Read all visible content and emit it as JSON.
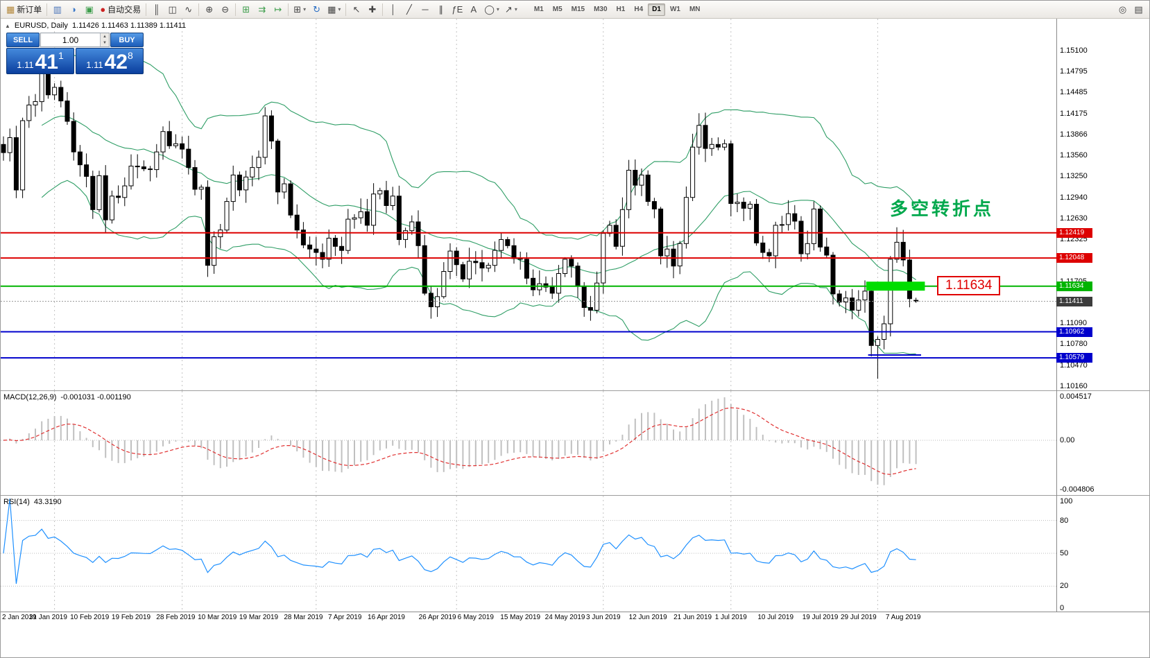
{
  "toolbar": {
    "left_items": [
      {
        "name": "new-order-button",
        "glyph": "▦",
        "color": "#b3873a",
        "label": "新订单"
      },
      {
        "sep": true
      },
      {
        "name": "market-watch-icon-button",
        "glyph": "▥",
        "color": "#4a74b8"
      },
      {
        "name": "navigator-icon-button",
        "glyph": "◑",
        "color": "#3a78c8"
      },
      {
        "name": "terminal-icon-button",
        "glyph": "▣",
        "color": "#3f9e4d"
      },
      {
        "name": "autotrading-button",
        "glyph": "●",
        "color": "#cc2222",
        "label": "自动交易"
      },
      {
        "sep": true
      },
      {
        "name": "bar-chart-icon-button",
        "glyph": "║"
      },
      {
        "name": "candlestick-chart-icon-button",
        "glyph": "◫"
      },
      {
        "name": "line-chart-icon-button",
        "glyph": "∿"
      },
      {
        "sep": true
      },
      {
        "name": "zoom-in-icon-button",
        "glyph": "⊕"
      },
      {
        "name": "zoom-out-icon-button",
        "glyph": "⊖"
      },
      {
        "sep": true
      },
      {
        "name": "tile-windows-icon-button",
        "glyph": "⊞",
        "color": "#3f9e4d"
      },
      {
        "name": "auto-scroll-icon-button",
        "glyph": "⇉",
        "color": "#3f9e4d"
      },
      {
        "name": "chart-shift-icon-button",
        "glyph": "↦",
        "color": "#3f9e4d"
      },
      {
        "sep": true
      },
      {
        "name": "new-chart-button",
        "glyph": "⊞",
        "caret": true
      },
      {
        "name": "refresh-icon-button",
        "glyph": "↻",
        "color": "#2b6fc4"
      },
      {
        "name": "templates-icon-button",
        "glyph": "▦",
        "caret": true
      },
      {
        "sep": true
      },
      {
        "name": "cursor-icon-button",
        "glyph": "↖"
      },
      {
        "name": "crosshair-icon-button",
        "glyph": "✚"
      },
      {
        "sep": true
      },
      {
        "name": "vertical-line-icon-button",
        "glyph": "│"
      },
      {
        "name": "trendline-icon-button",
        "glyph": "╱"
      },
      {
        "name": "horizontal-line-icon-button",
        "glyph": "─"
      },
      {
        "name": "channel-icon-button",
        "glyph": "∥"
      },
      {
        "name": "fibonacci-icon-button",
        "glyph": "ƒE"
      },
      {
        "name": "text-icon-button",
        "glyph": "A"
      },
      {
        "name": "shapes-icon-button",
        "glyph": "◯",
        "caret": true
      },
      {
        "name": "arrow-tool-icon-button",
        "glyph": "↗",
        "caret": true
      }
    ],
    "timeframes": [
      "M1",
      "M5",
      "M15",
      "M30",
      "H1",
      "H4",
      "D1",
      "W1",
      "MN"
    ],
    "active_timeframe": "D1",
    "right_items": [
      {
        "name": "search-icon-button",
        "glyph": "◎"
      },
      {
        "name": "window-list-icon-button",
        "glyph": "▤"
      }
    ]
  },
  "chart": {
    "symbol_icon": "▲",
    "symbol_label": "EURUSD, Daily",
    "ohlc_label": "1.11426 1.11463 1.11389 1.11411",
    "trade_panel": {
      "sell_label": "SELL",
      "buy_label": "BUY",
      "volume": "1.00",
      "vol_up_icon": "▲",
      "vol_down_icon": "▼",
      "bid_small": "1.11",
      "bid_big": "41",
      "bid_sup": "1",
      "ask_small": "1.11",
      "ask_big": "42",
      "ask_sup": "8"
    },
    "annotation": "多空转折点",
    "level_label": "1.11634",
    "y_axis_labels": [
      "1.15100",
      "1.14795",
      "1.14485",
      "1.14175",
      "1.13866",
      "1.13560",
      "1.13250",
      "1.12940",
      "1.12630",
      "1.12325",
      "1.12015",
      "1.11705",
      "1.11395",
      "1.11090",
      "1.10780",
      "1.10470",
      "1.10160"
    ],
    "price_tags": [
      {
        "text": "1.12419",
        "price": 1.12419,
        "color": "#dd0000",
        "line": "solid"
      },
      {
        "text": "1.12048",
        "price": 1.12048,
        "color": "#dd0000",
        "line": "solid"
      },
      {
        "text": "1.11634",
        "price": 1.11634,
        "color": "#00b400",
        "line": "solid"
      },
      {
        "text": "1.11411",
        "price": 1.11411,
        "color": "#3c3c3c",
        "line": "dotted"
      },
      {
        "text": "1.10962",
        "price": 1.10962,
        "color": "#0000cc",
        "line": "solid"
      },
      {
        "text": "1.10579",
        "price": 1.10579,
        "color": "#0000cc",
        "line": "solid"
      }
    ],
    "highlight": {
      "price": 1.11634,
      "i1": 135.2,
      "i2": 144.4,
      "height": 13
    },
    "segments": [
      {
        "price": 1.1062,
        "i1": 135.5,
        "i2": 143.8,
        "color": "#0000cc"
      }
    ],
    "x_axis_labels": [
      {
        "t": "2 Jan 2019",
        "i": 0,
        "left": true
      },
      {
        "t": "31 Jan 2019",
        "i": 7
      },
      {
        "t": "10 Feb 2019",
        "i": 13.5
      },
      {
        "t": "19 Feb 2019",
        "i": 20
      },
      {
        "t": "28 Feb 2019",
        "i": 27
      },
      {
        "t": "10 Mar 2019",
        "i": 33.5
      },
      {
        "t": "19 Mar 2019",
        "i": 40
      },
      {
        "t": "28 Mar 2019",
        "i": 47
      },
      {
        "t": "7 Apr 2019",
        "i": 53.5
      },
      {
        "t": "16 Apr 2019",
        "i": 60
      },
      {
        "t": "26 Apr 2019",
        "i": 68
      },
      {
        "t": "6 May 2019",
        "i": 74
      },
      {
        "t": "15 May 2019",
        "i": 81
      },
      {
        "t": "24 May 2019",
        "i": 88
      },
      {
        "t": "3 Jun 2019",
        "i": 94
      },
      {
        "t": "12 Jun 2019",
        "i": 101
      },
      {
        "t": "21 Jun 2019",
        "i": 108
      },
      {
        "t": "1 Jul 2019",
        "i": 114
      },
      {
        "t": "10 Jul 2019",
        "i": 121
      },
      {
        "t": "19 Jul 2019",
        "i": 128
      },
      {
        "t": "29 Jul 2019",
        "i": 134
      },
      {
        "t": "7 Aug 2019",
        "i": 141
      }
    ]
  },
  "macd_panel": {
    "label": "MACD(12,26,9)",
    "values": "-0.001031 -0.001190",
    "axis_labels": [
      "0.004517",
      "0.00",
      "-0.004806"
    ]
  },
  "rsi_panel": {
    "label": "RSI(14)",
    "value": "43.3190",
    "axis_labels": [
      "100",
      "80",
      "50",
      "20",
      "0"
    ],
    "levels": [
      80,
      50,
      20
    ]
  },
  "colors": {
    "bollinger": "#2f9e66",
    "macd_signal": "#e03030",
    "macd_histogram": "#c0c0c0",
    "rsi_line": "#1e90ff",
    "annotation": "#00a84c",
    "level_label": "#e00000",
    "highlight": "#00dd00",
    "up_candle": "#ffffff",
    "down_candle": "#000000"
  },
  "chart_data": {
    "type": "candlestick",
    "symbol": "EURUSD",
    "timeframe": "Daily",
    "closes": [
      1.136,
      1.1382,
      1.1305,
      1.1407,
      1.143,
      1.1435,
      1.1481,
      1.1445,
      1.1456,
      1.1436,
      1.1406,
      1.1361,
      1.1342,
      1.1325,
      1.1276,
      1.1326,
      1.1261,
      1.1296,
      1.1294,
      1.1311,
      1.134,
      1.1339,
      1.1336,
      1.1335,
      1.1361,
      1.1391,
      1.137,
      1.1373,
      1.1365,
      1.1338,
      1.1306,
      1.1309,
      1.1194,
      1.1236,
      1.1246,
      1.1288,
      1.1327,
      1.1305,
      1.1324,
      1.1338,
      1.1353,
      1.1414,
      1.1377,
      1.1302,
      1.1314,
      1.1268,
      1.1246,
      1.1224,
      1.1218,
      1.1213,
      1.1203,
      1.1234,
      1.1222,
      1.1216,
      1.1262,
      1.1264,
      1.1273,
      1.1253,
      1.1299,
      1.1304,
      1.1282,
      1.1296,
      1.1232,
      1.1245,
      1.1258,
      1.1223,
      1.1153,
      1.1133,
      1.1148,
      1.1185,
      1.1215,
      1.1195,
      1.1174,
      1.12,
      1.1198,
      1.119,
      1.1194,
      1.1216,
      1.1232,
      1.1223,
      1.1204,
      1.1203,
      1.1175,
      1.1158,
      1.1167,
      1.1162,
      1.1153,
      1.1182,
      1.1203,
      1.1193,
      1.1163,
      1.1132,
      1.1128,
      1.1168,
      1.1241,
      1.1253,
      1.1222,
      1.1276,
      1.1334,
      1.1312,
      1.1327,
      1.1288,
      1.1277,
      1.1208,
      1.1218,
      1.1193,
      1.1226,
      1.1294,
      1.1368,
      1.14,
      1.1366,
      1.1372,
      1.1368,
      1.1373,
      1.1285,
      1.1287,
      1.1278,
      1.1284,
      1.1227,
      1.1213,
      1.1208,
      1.1253,
      1.1254,
      1.127,
      1.1259,
      1.1211,
      1.1226,
      1.1277,
      1.1221,
      1.1209,
      1.1152,
      1.114,
      1.1146,
      1.1128,
      1.1143,
      1.1156,
      1.1076,
      1.1085,
      1.1108,
      1.1203,
      1.1228,
      1.1202,
      1.1145,
      1.11411
    ],
    "ohlc_overrides": {
      "32": {
        "low": 1.1177
      },
      "136": {
        "low": 1.106
      },
      "137": {
        "low": 1.1027
      },
      "140": {
        "high": 1.125
      },
      "143": {
        "open": 1.11426,
        "high": 1.11463,
        "low": 1.11389,
        "close": 1.11411
      }
    },
    "month_start_indices": [
      8,
      28,
      49,
      71,
      94,
      114,
      137
    ],
    "indicators": {
      "bollinger_period": 20,
      "bollinger_deviation": 2,
      "macd": [
        12,
        26,
        9
      ],
      "rsi_period": 14
    },
    "horizontal_levels": [
      1.12419,
      1.12048,
      1.11634,
      1.10962,
      1.10579
    ],
    "current_price": 1.11411
  }
}
